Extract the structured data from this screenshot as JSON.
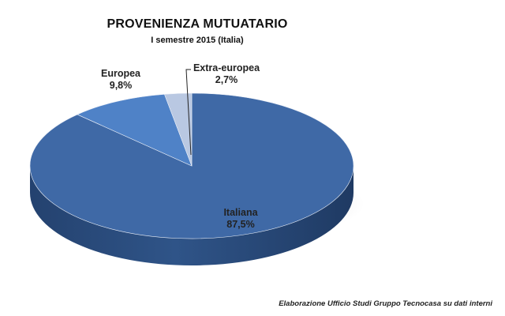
{
  "chart_data": {
    "type": "pie",
    "title": "PROVENIENZA MUTUATARIO",
    "subtitle": "I semestre 2015 (Italia)",
    "slices": [
      {
        "label": "Italiana",
        "value": 87.5,
        "value_label": "87,5%",
        "color": "#3f69a6"
      },
      {
        "label": "Europea",
        "value": 9.8,
        "value_label": "9,8%",
        "color": "#4f82c7"
      },
      {
        "label": "Extra-europea",
        "value": 2.7,
        "value_label": "2,7%",
        "color": "#b9c8e2"
      }
    ],
    "style": "3d"
  },
  "source_note": "Elaborazione Ufficio Studi Gruppo Tecnocasa su dati interni"
}
